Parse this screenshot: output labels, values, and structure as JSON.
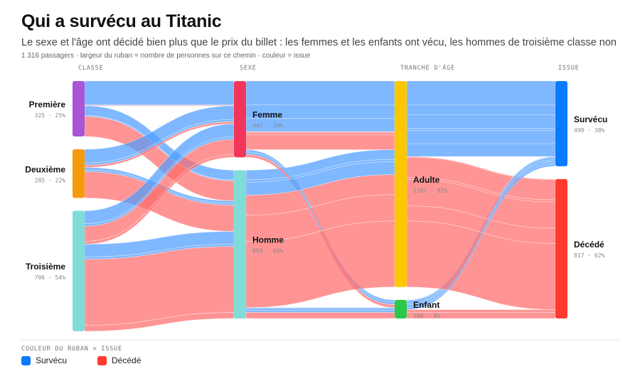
{
  "header": {
    "title": "Qui a survécu au Titanic",
    "subtitle": "Le sexe et l'âge ont décidé bien plus que le prix du billet : les femmes et les enfants ont vécu, les hommes de troisième classe non",
    "note": "1 316 passagers · largeur du ruban = nombre de personnes sur ce chemin · couleur = issue"
  },
  "columns": [
    "CLASSE",
    "SEXE",
    "TRANCHE D'ÂGE",
    "ISSUE"
  ],
  "nodes": [
    {
      "id": "premiere",
      "label": "Première",
      "stat": "325 · 25%",
      "col": 0,
      "value": 325,
      "color": "#a855d8"
    },
    {
      "id": "deuxieme",
      "label": "Deuxième",
      "stat": "285 · 22%",
      "col": 0,
      "value": 285,
      "color": "#f59a0b"
    },
    {
      "id": "troisieme",
      "label": "Troisième",
      "stat": "706 · 54%",
      "col": 0,
      "value": 706,
      "color": "#7fdcd6"
    },
    {
      "id": "femme",
      "label": "Femme",
      "stat": "447 · 34%",
      "col": 1,
      "value": 447,
      "color": "#f2365b"
    },
    {
      "id": "homme",
      "label": "Homme",
      "stat": "869 · 66%",
      "col": 1,
      "value": 869,
      "color": "#7fdcd6"
    },
    {
      "id": "adulte",
      "label": "Adulte",
      "stat": "1207 · 92%",
      "col": 2,
      "value": 1207,
      "color": "#fcc700"
    },
    {
      "id": "enfant",
      "label": "Enfant",
      "stat": "109 · 8%",
      "col": 2,
      "value": 109,
      "color": "#2bc84a"
    },
    {
      "id": "survecu",
      "label": "Survécu",
      "stat": "499 · 38%",
      "col": 3,
      "value": 499,
      "color": "#0a7bff"
    },
    {
      "id": "decede",
      "label": "Décédé",
      "stat": "817 · 62%",
      "col": 3,
      "value": 817,
      "color": "#ff3b30"
    }
  ],
  "flows": [
    {
      "path": [
        "premiere",
        "femme",
        "adulte"
      ],
      "outcome": "survecu",
      "value": 140
    },
    {
      "path": [
        "premiere",
        "femme",
        "adulte"
      ],
      "outcome": "decede",
      "value": 4
    },
    {
      "path": [
        "premiere",
        "femme",
        "enfant"
      ],
      "outcome": "survecu",
      "value": 1
    },
    {
      "path": [
        "premiere",
        "homme",
        "adulte"
      ],
      "outcome": "survecu",
      "value": 57
    },
    {
      "path": [
        "premiere",
        "homme",
        "adulte"
      ],
      "outcome": "decede",
      "value": 118
    },
    {
      "path": [
        "premiere",
        "homme",
        "enfant"
      ],
      "outcome": "survecu",
      "value": 5
    },
    {
      "path": [
        "deuxieme",
        "femme",
        "adulte"
      ],
      "outcome": "survecu",
      "value": 80
    },
    {
      "path": [
        "deuxieme",
        "femme",
        "adulte"
      ],
      "outcome": "decede",
      "value": 13
    },
    {
      "path": [
        "deuxieme",
        "femme",
        "enfant"
      ],
      "outcome": "survecu",
      "value": 13
    },
    {
      "path": [
        "deuxieme",
        "homme",
        "adulte"
      ],
      "outcome": "survecu",
      "value": 14
    },
    {
      "path": [
        "deuxieme",
        "homme",
        "adulte"
      ],
      "outcome": "decede",
      "value": 154
    },
    {
      "path": [
        "deuxieme",
        "homme",
        "enfant"
      ],
      "outcome": "survecu",
      "value": 11
    },
    {
      "path": [
        "troisieme",
        "femme",
        "adulte"
      ],
      "outcome": "survecu",
      "value": 76
    },
    {
      "path": [
        "troisieme",
        "femme",
        "adulte"
      ],
      "outcome": "decede",
      "value": 89
    },
    {
      "path": [
        "troisieme",
        "femme",
        "enfant"
      ],
      "outcome": "survecu",
      "value": 14
    },
    {
      "path": [
        "troisieme",
        "femme",
        "enfant"
      ],
      "outcome": "decede",
      "value": 17
    },
    {
      "path": [
        "troisieme",
        "homme",
        "adulte"
      ],
      "outcome": "survecu",
      "value": 75
    },
    {
      "path": [
        "troisieme",
        "homme",
        "adulte"
      ],
      "outcome": "decede",
      "value": 387
    },
    {
      "path": [
        "troisieme",
        "homme",
        "enfant"
      ],
      "outcome": "survecu",
      "value": 13
    },
    {
      "path": [
        "troisieme",
        "homme",
        "enfant"
      ],
      "outcome": "decede",
      "value": 35
    }
  ],
  "outcome_colors": {
    "survecu": "#4d9cff",
    "decede": "#ff6b6b"
  },
  "legend": {
    "title": "COULEUR DU RUBAN = ISSUE",
    "items": [
      {
        "label": "Survécu",
        "color": "#0a7bff"
      },
      {
        "label": "Décédé",
        "color": "#ff3b30"
      }
    ]
  }
}
